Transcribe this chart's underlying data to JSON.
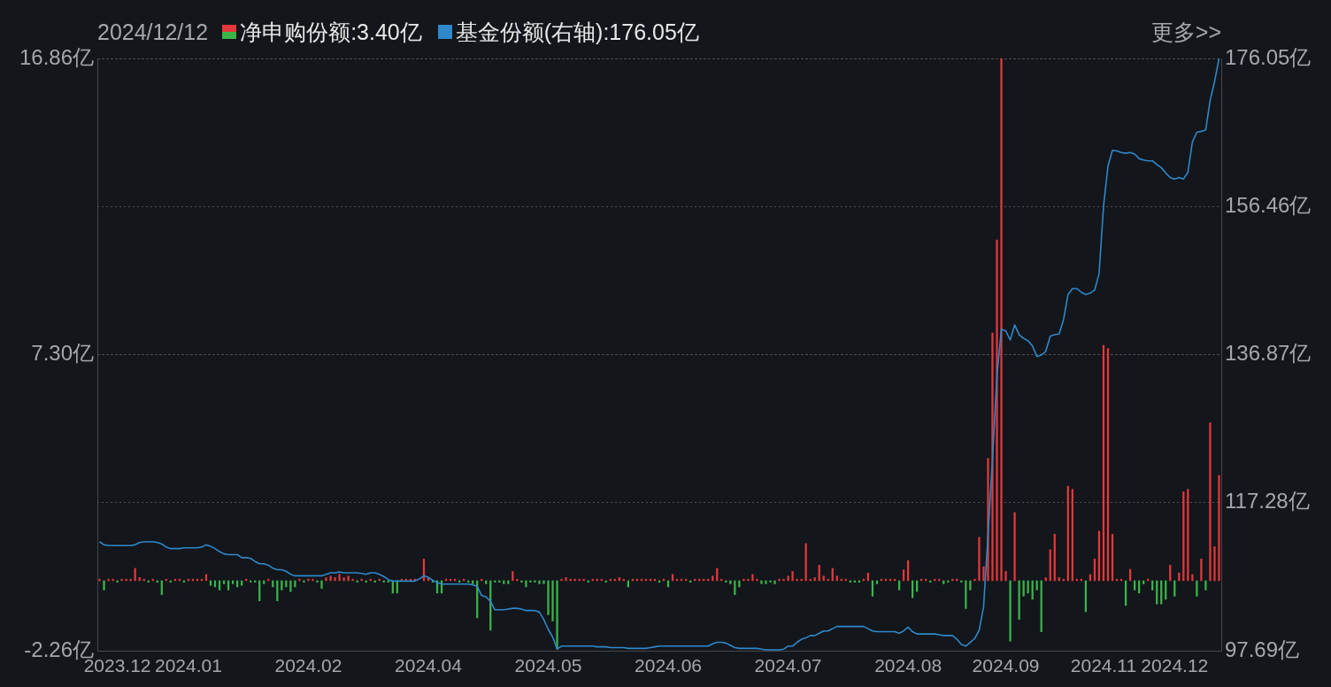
{
  "chart_data": {
    "type": "bar",
    "title": "2024/12/12",
    "annotations": [
      "更多>>"
    ],
    "legend": "top",
    "grid": "y",
    "categories": [
      null,
      null,
      null,
      null,
      "2023.12",
      null,
      null,
      null,
      null,
      null,
      null,
      null,
      null,
      null,
      null,
      null,
      null,
      null,
      null,
      null,
      "2024.01",
      null,
      null,
      null,
      null,
      null,
      null,
      null,
      null,
      null,
      null,
      null,
      null,
      null,
      null,
      null,
      null,
      null,
      null,
      null,
      null,
      null,
      null,
      null,
      null,
      null,
      null,
      "2024.02",
      null,
      null,
      null,
      null,
      null,
      null,
      null,
      null,
      null,
      null,
      null,
      null,
      null,
      null,
      null,
      null,
      null,
      null,
      null,
      null,
      null,
      null,
      null,
      null,
      null,
      null,
      "2024.04",
      null,
      null,
      null,
      null,
      null,
      null,
      null,
      null,
      null,
      null,
      null,
      null,
      null,
      null,
      null,
      null,
      null,
      null,
      null,
      null,
      null,
      null,
      null,
      null,
      null,
      null,
      "2024.05",
      null,
      null,
      null,
      null,
      null,
      null,
      null,
      null,
      null,
      null,
      null,
      null,
      null,
      null,
      null,
      null,
      null,
      null,
      null,
      null,
      null,
      null,
      null,
      null,
      null,
      null,
      "2024.06",
      null,
      null,
      null,
      null,
      null,
      null,
      null,
      null,
      null,
      null,
      null,
      null,
      null,
      null,
      null,
      null,
      null,
      null,
      null,
      null,
      null,
      null,
      null,
      null,
      null,
      null,
      "2024.07",
      null,
      null,
      null,
      null,
      null,
      null,
      null,
      null,
      null,
      null,
      null,
      null,
      null,
      null,
      null,
      null,
      null,
      null,
      null,
      null,
      null,
      null,
      null,
      null,
      null,
      null,
      "2024.08",
      null,
      null,
      null,
      null,
      null,
      null,
      null,
      null,
      null,
      null,
      null,
      null,
      null,
      null,
      null,
      null,
      null,
      null,
      null,
      null,
      null,
      "2024.09",
      null,
      null,
      null,
      null,
      null,
      null,
      null,
      null,
      null,
      null,
      null,
      null,
      null,
      null,
      null,
      null,
      null,
      null,
      null,
      null,
      null,
      "2024.11",
      null,
      null,
      null,
      null,
      null,
      null,
      null,
      null,
      null,
      null,
      null,
      null,
      null,
      null,
      null,
      "2024.12",
      null,
      null,
      null,
      null,
      null,
      null,
      null,
      null,
      null,
      null
    ],
    "ylim": [
      -2.26,
      16.86
    ],
    "yticks": [
      {
        "value": -2.26,
        "label": "-2.26亿"
      },
      {
        "value": 7.3,
        "label": "7.30亿"
      },
      {
        "value": 16.86,
        "label": "16.86亿"
      }
    ],
    "y2lim": [
      97.69,
      176.05
    ],
    "y2ticks": [
      {
        "value": 97.69,
        "label": "97.69亿"
      },
      {
        "value": 117.28,
        "label": "117.28亿"
      },
      {
        "value": 136.87,
        "label": "136.87亿"
      },
      {
        "value": 156.46,
        "label": "156.46亿"
      },
      {
        "value": 176.05,
        "label": "176.05亿"
      }
    ],
    "series": [
      {
        "name": "净申购份额:3.40亿",
        "values": [
          0.05,
          -0.3,
          0.05,
          0.05,
          -0.05,
          0.05,
          0.05,
          0.05,
          0.4,
          0.1,
          0.05,
          -0.05,
          0.05,
          -0.05,
          -0.45,
          0.05,
          -0.05,
          0.05,
          0.05,
          -0.05,
          0.05,
          0.05,
          0.05,
          0.05,
          0.2,
          -0.15,
          -0.2,
          -0.3,
          -0.1,
          -0.3,
          -0.1,
          -0.2,
          -0.15,
          0.05,
          -0.05,
          -0.05,
          -0.65,
          -0.1,
          0.05,
          -0.2,
          -0.65,
          -0.3,
          -0.2,
          -0.35,
          -0.2,
          0.05,
          -0.05,
          0.05,
          0.05,
          -0.05,
          -0.25,
          0.1,
          0.15,
          0.1,
          0.2,
          0.1,
          0.15,
          0.05,
          -0.05,
          0.05,
          -0.05,
          0.05,
          -0.05,
          0.05,
          -0.05,
          -0.05,
          -0.4,
          -0.4,
          0.05,
          0.05,
          0.05,
          0.05,
          null,
          0.7,
          0.1,
          -0.05,
          -0.4,
          -0.4,
          0.05,
          0.05,
          0.05,
          -0.05,
          0.05,
          -0.05,
          -0.1,
          -1.2,
          0.05,
          -0.1,
          -1.6,
          -0.05,
          -0.05,
          -0.1,
          -0.1,
          0.3,
          0.05,
          -0.05,
          -0.2,
          -0.05,
          -0.05,
          -0.1,
          -0.1,
          -1.1,
          -1.3,
          -2.2,
          0.05,
          0.1,
          0.05,
          0.05,
          0.05,
          0.05,
          -0.05,
          0.05,
          0.05,
          0.05,
          -0.05,
          0.05,
          0.05,
          0.1,
          0.05,
          -0.2,
          0.05,
          0.05,
          0.05,
          0.05,
          0.05,
          0.05,
          -0.05,
          0.05,
          -0.2,
          0.2,
          0.05,
          0.05,
          0.05,
          -0.05,
          0.05,
          0.05,
          0.05,
          0.05,
          0.15,
          0.4,
          0.05,
          -0.05,
          -0.1,
          -0.45,
          -0.2,
          0.05,
          0.05,
          0.2,
          0.05,
          -0.1,
          -0.1,
          -0.05,
          -0.1,
          0.05,
          0.05,
          0.15,
          0.3,
          0.05,
          0.05,
          1.2,
          0.05,
          0.1,
          0.5,
          0.15,
          0.05,
          0.4,
          0.15,
          0.05,
          0.05,
          -0.05,
          -0.05,
          -0.05,
          0.05,
          0.25,
          -0.5,
          -0.1,
          0.05,
          0.05,
          0.05,
          0.05,
          -0.3,
          0.35,
          0.65,
          -0.55,
          -0.35,
          0.05,
          0.05,
          -0.05,
          0.05,
          0.05,
          -0.1,
          -0.05,
          0.05,
          0.05,
          -0.05,
          -0.9,
          -0.3,
          0.05,
          1.4,
          0.45,
          3.95,
          8.0,
          11.0,
          16.86,
          0.3,
          -1.95,
          2.2,
          -1.25,
          -0.5,
          -0.4,
          -0.6,
          -0.3,
          -1.65,
          0.1,
          1.0,
          1.5,
          0.1,
          0.05,
          3.05,
          2.95,
          0.05,
          0.05,
          -1.0,
          0.2,
          0.7,
          1.6,
          7.6,
          7.5,
          1.5,
          0.05,
          0.05,
          -0.8,
          0.37,
          -0.3,
          -0.4,
          -0.1,
          0.05,
          -0.3,
          -0.75,
          -0.75,
          -0.6,
          0.5,
          -0.5,
          0.25,
          2.87,
          2.95,
          0.2,
          -0.5,
          0.7,
          -0.3,
          5.1,
          1.1,
          3.4
        ],
        "colors": [
          "#e5383b",
          "#3ab54a",
          "#e5383b",
          "#e5383b",
          "#3ab54a",
          "#e5383b",
          "#e5383b",
          "#e5383b",
          "#e5383b",
          "#e5383b",
          "#e5383b",
          "#3ab54a",
          "#e5383b",
          "#3ab54a",
          "#3ab54a",
          "#e5383b",
          "#3ab54a",
          "#e5383b",
          "#e5383b",
          "#3ab54a",
          "#e5383b",
          "#e5383b",
          "#e5383b",
          "#e5383b",
          "#e5383b",
          "#3ab54a",
          "#3ab54a",
          "#3ab54a",
          "#3ab54a",
          "#3ab54a",
          "#3ab54a",
          "#3ab54a",
          "#3ab54a",
          "#e5383b",
          "#3ab54a",
          "#3ab54a",
          "#3ab54a",
          "#3ab54a",
          "#e5383b",
          "#3ab54a",
          "#3ab54a",
          "#3ab54a",
          "#3ab54a",
          "#3ab54a",
          "#3ab54a",
          "#e5383b",
          "#3ab54a",
          "#e5383b",
          "#e5383b",
          "#3ab54a",
          "#3ab54a",
          "#e5383b",
          "#e5383b",
          "#e5383b",
          "#e5383b",
          "#e5383b",
          "#e5383b",
          "#e5383b",
          "#3ab54a",
          "#e5383b",
          "#3ab54a",
          "#e5383b",
          "#3ab54a",
          "#e5383b",
          "#3ab54a",
          "#3ab54a",
          "#3ab54a",
          "#3ab54a",
          "#e5383b",
          "#e5383b",
          "#e5383b",
          "#e5383b",
          "#e5383b",
          "#e5383b",
          "#e5383b",
          "#3ab54a",
          "#3ab54a",
          "#3ab54a",
          "#e5383b",
          "#e5383b",
          "#e5383b",
          "#3ab54a",
          "#e5383b",
          "#3ab54a",
          "#3ab54a",
          "#3ab54a",
          "#e5383b",
          "#3ab54a",
          "#3ab54a",
          "#3ab54a",
          "#3ab54a",
          "#3ab54a",
          "#3ab54a",
          "#e5383b",
          "#e5383b",
          "#3ab54a",
          "#3ab54a",
          "#3ab54a",
          "#3ab54a",
          "#3ab54a",
          "#3ab54a",
          "#3ab54a",
          "#3ab54a",
          "#3ab54a",
          "#e5383b",
          "#e5383b",
          "#e5383b",
          "#e5383b",
          "#e5383b",
          "#e5383b",
          "#3ab54a",
          "#e5383b",
          "#e5383b",
          "#e5383b",
          "#3ab54a",
          "#e5383b",
          "#e5383b",
          "#e5383b",
          "#e5383b",
          "#3ab54a",
          "#e5383b",
          "#e5383b",
          "#e5383b",
          "#e5383b",
          "#e5383b",
          "#e5383b",
          "#3ab54a",
          "#e5383b",
          "#3ab54a",
          "#e5383b",
          "#e5383b",
          "#e5383b",
          "#e5383b",
          "#3ab54a",
          "#e5383b",
          "#e5383b",
          "#e5383b",
          "#e5383b",
          "#e5383b",
          "#e5383b",
          "#e5383b",
          "#3ab54a",
          "#3ab54a",
          "#3ab54a",
          "#3ab54a",
          "#e5383b",
          "#e5383b",
          "#e5383b",
          "#e5383b",
          "#3ab54a",
          "#3ab54a",
          "#3ab54a",
          "#3ab54a",
          "#e5383b",
          "#e5383b",
          "#e5383b",
          "#e5383b",
          "#e5383b",
          "#e5383b",
          "#e5383b",
          "#e5383b",
          "#e5383b",
          "#e5383b",
          "#e5383b",
          "#e5383b",
          "#e5383b",
          "#e5383b",
          "#e5383b",
          "#e5383b",
          "#3ab54a",
          "#3ab54a",
          "#3ab54a",
          "#e5383b",
          "#e5383b",
          "#3ab54a",
          "#3ab54a",
          "#e5383b",
          "#e5383b",
          "#e5383b",
          "#e5383b",
          "#3ab54a",
          "#e5383b",
          "#e5383b",
          "#3ab54a",
          "#3ab54a",
          "#e5383b",
          "#e5383b",
          "#3ab54a",
          "#e5383b",
          "#e5383b",
          "#3ab54a",
          "#3ab54a",
          "#e5383b",
          "#e5383b",
          "#3ab54a",
          "#3ab54a",
          "#3ab54a",
          "#e5383b",
          "#e5383b",
          "#e5383b",
          "#e5383b",
          "#e5383b",
          "#e5383b",
          "#e5383b",
          "#e5383b",
          "#3ab54a",
          "#e5383b",
          "#3ab54a",
          "#3ab54a",
          "#3ab54a",
          "#3ab54a",
          "#3ab54a",
          "#3ab54a",
          "#e5383b",
          "#e5383b",
          "#e5383b",
          "#e5383b",
          "#e5383b",
          "#e5383b",
          "#e5383b",
          "#e5383b",
          "#e5383b",
          "#3ab54a",
          "#e5383b",
          "#e5383b",
          "#e5383b",
          "#e5383b",
          "#e5383b",
          "#e5383b",
          "#e5383b",
          "#e5383b",
          "#3ab54a",
          "#e5383b",
          "#3ab54a",
          "#3ab54a",
          "#3ab54a",
          "#e5383b",
          "#3ab54a",
          "#3ab54a",
          "#3ab54a",
          "#3ab54a",
          "#e5383b",
          "#3ab54a",
          "#e5383b",
          "#e5383b",
          "#e5383b",
          "#e5383b",
          "#3ab54a",
          "#e5383b",
          "#3ab54a",
          "#e5383b",
          "#e5383b",
          "#e5383b"
        ]
      },
      {
        "type": "line",
        "name": "基金份额(右轴):176.05亿",
        "color": "#2f88c9",
        "axis": "y2",
        "values": [
          112.1,
          111.7,
          111.6,
          111.6,
          111.6,
          111.6,
          111.6,
          111.6,
          111.7,
          112.0,
          112.1,
          112.1,
          112.1,
          112.0,
          111.8,
          111.4,
          111.2,
          111.2,
          111.2,
          111.3,
          111.3,
          111.3,
          111.3,
          111.4,
          111.7,
          111.5,
          111.2,
          110.8,
          110.5,
          110.4,
          110.4,
          110.4,
          110.0,
          110.0,
          109.9,
          109.5,
          109.2,
          109.2,
          109.0,
          108.6,
          108.4,
          108.4,
          108.2,
          107.8,
          107.6,
          107.6,
          107.6,
          107.6,
          107.6,
          107.6,
          107.6,
          107.8,
          108.0,
          108.0,
          108.1,
          108.0,
          108.0,
          108.0,
          108.0,
          107.9,
          107.8,
          108.0,
          108.0,
          107.8,
          107.5,
          107.1,
          106.9,
          106.9,
          106.9,
          106.9,
          106.9,
          106.9,
          107.2,
          107.6,
          107.4,
          107.0,
          106.7,
          106.5,
          106.5,
          106.5,
          106.5,
          106.5,
          106.5,
          106.5,
          106.4,
          106.2,
          105.0,
          104.8,
          104.2,
          103.1,
          103.1,
          103.1,
          103.2,
          103.3,
          103.3,
          103.2,
          103.0,
          103.0,
          103.0,
          102.8,
          101.8,
          100.5,
          99.5,
          97.9,
          98.3,
          98.3,
          98.3,
          98.3,
          98.3,
          98.3,
          98.3,
          98.3,
          98.2,
          98.2,
          98.2,
          98.1,
          98.1,
          98.1,
          98.1,
          98.0,
          98.0,
          98.0,
          98.0,
          98.0,
          98.1,
          98.2,
          98.3,
          98.3,
          98.3,
          98.3,
          98.3,
          98.3,
          98.3,
          98.3,
          98.3,
          98.3,
          98.3,
          98.3,
          98.6,
          98.8,
          98.8,
          98.7,
          98.4,
          98.1,
          98.0,
          98.0,
          98.0,
          98.0,
          98.0,
          97.9,
          97.8,
          97.8,
          97.8,
          97.8,
          97.9,
          98.3,
          98.3,
          98.8,
          99.2,
          99.4,
          99.7,
          99.7,
          100.0,
          100.3,
          100.3,
          100.6,
          100.9,
          100.9,
          100.9,
          100.9,
          100.9,
          100.9,
          100.9,
          100.6,
          100.3,
          100.2,
          100.2,
          100.2,
          100.2,
          100.2,
          100.0,
          100.3,
          100.8,
          100.2,
          99.9,
          99.9,
          99.9,
          99.9,
          99.9,
          99.8,
          99.7,
          99.7,
          99.7,
          99.2,
          98.5,
          98.3,
          98.8,
          99.3,
          100.4,
          103.5,
          113.0,
          123.0,
          134.0,
          140.2,
          140.0,
          138.8,
          140.8,
          139.5,
          139.0,
          138.7,
          138.0,
          136.6,
          136.8,
          137.3,
          139.3,
          139.5,
          139.6,
          141.5,
          144.8,
          145.6,
          145.6,
          145.1,
          144.8,
          145.0,
          145.4,
          147.6,
          156.5,
          161.8,
          163.9,
          163.8,
          163.6,
          163.5,
          163.6,
          163.4,
          162.8,
          162.6,
          162.5,
          162.5,
          162.0,
          161.6,
          160.9,
          160.3,
          160.1,
          160.3,
          160.1,
          161.0,
          165.0,
          166.3,
          166.4,
          166.6,
          170.5,
          173.0,
          176.05
        ]
      }
    ]
  }
}
